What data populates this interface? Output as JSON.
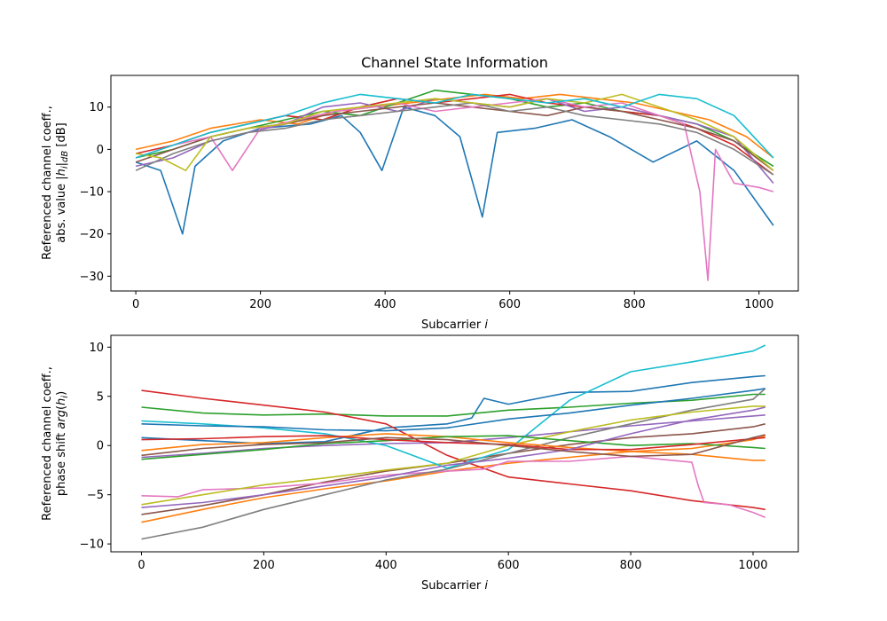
{
  "chart_data": [
    {
      "type": "line",
      "title": "Channel State Information",
      "xlabel": "Subcarrier i",
      "ylabel_line1": "Referenced channel coeff.,",
      "ylabel_line2": "abs. value |h_i|_dB [dB]",
      "xlim": [
        -40,
        1063
      ],
      "ylim": [
        -33.5,
        17.5
      ],
      "xticks": [
        0,
        200,
        400,
        600,
        800,
        1000
      ],
      "yticks": [
        -30,
        -20,
        -10,
        0,
        10
      ],
      "grid": false,
      "colors": [
        "#1f77b4",
        "#ff7f0e",
        "#2ca02c",
        "#d62728",
        "#9467bd",
        "#8c564b",
        "#e377c2",
        "#7f7f7f",
        "#bcbd22",
        "#17becf"
      ],
      "series": [
        {
          "x": [
            0,
            40,
            75,
            95,
            140,
            200,
            280,
            330,
            360,
            395,
            430,
            480,
            520,
            556,
            580,
            640,
            700,
            760,
            830,
            900,
            960,
            1023
          ],
          "y": [
            -3,
            -5,
            -20,
            -4,
            2,
            5,
            6,
            8,
            4,
            -5,
            10,
            8,
            3,
            -16,
            4,
            5,
            7,
            3,
            -3,
            2,
            -5,
            -18
          ]
        },
        {
          "x": [
            0,
            60,
            120,
            200,
            260,
            320,
            380,
            440,
            500,
            560,
            620,
            680,
            740,
            800,
            860,
            920,
            980,
            1023
          ],
          "y": [
            0,
            2,
            5,
            7,
            6,
            9,
            10,
            11,
            12,
            13,
            12,
            13,
            12,
            11,
            9,
            7,
            3,
            -2
          ]
        },
        {
          "x": [
            0,
            60,
            120,
            180,
            240,
            300,
            360,
            420,
            480,
            540,
            600,
            660,
            720,
            780,
            840,
            900,
            960,
            1023
          ],
          "y": [
            -2,
            0,
            3,
            5,
            7,
            9,
            8,
            11,
            14,
            13,
            12,
            10,
            11,
            9,
            8,
            6,
            2,
            -4
          ]
        },
        {
          "x": [
            0,
            60,
            120,
            180,
            240,
            300,
            360,
            420,
            480,
            540,
            600,
            660,
            720,
            780,
            840,
            900,
            960,
            1023
          ],
          "y": [
            -1,
            1,
            4,
            6,
            8,
            7,
            10,
            12,
            11,
            12,
            13,
            11,
            10,
            9,
            8,
            5,
            1,
            -6
          ]
        },
        {
          "x": [
            0,
            60,
            120,
            180,
            240,
            300,
            360,
            420,
            480,
            540,
            600,
            660,
            720,
            780,
            840,
            900,
            960,
            1023
          ],
          "y": [
            -4,
            -2,
            2,
            4,
            6,
            10,
            11,
            9,
            12,
            11,
            10,
            12,
            9,
            10,
            8,
            6,
            3,
            -8
          ]
        },
        {
          "x": [
            0,
            60,
            120,
            180,
            240,
            300,
            360,
            420,
            480,
            540,
            600,
            660,
            720,
            780,
            840,
            900,
            960,
            1023
          ],
          "y": [
            -3,
            0,
            3,
            5,
            6,
            8,
            9,
            10,
            11,
            10,
            9,
            8,
            10,
            9,
            7,
            5,
            2,
            -5
          ]
        },
        {
          "x": [
            0,
            60,
            120,
            155,
            200,
            260,
            320,
            380,
            420,
            480,
            540,
            600,
            660,
            720,
            780,
            840,
            880,
            905,
            918,
            930,
            960,
            1000,
            1023
          ],
          "y": [
            -2,
            1,
            3,
            -5,
            5,
            7,
            9,
            10,
            11,
            9,
            10,
            11,
            12,
            10,
            11,
            8,
            6,
            -10,
            -31,
            0,
            -8,
            -9,
            -10
          ]
        },
        {
          "x": [
            0,
            60,
            120,
            180,
            240,
            300,
            360,
            420,
            480,
            540,
            600,
            660,
            720,
            780,
            840,
            900,
            960,
            1023
          ],
          "y": [
            -5,
            -1,
            2,
            4,
            5,
            7,
            8,
            9,
            10,
            11,
            9,
            10,
            8,
            7,
            6,
            4,
            0,
            -6
          ]
        },
        {
          "x": [
            0,
            40,
            80,
            120,
            180,
            240,
            300,
            360,
            420,
            480,
            540,
            600,
            660,
            720,
            780,
            840,
            900,
            960,
            1023
          ],
          "y": [
            -1,
            -2,
            -5,
            3,
            5,
            6,
            9,
            10,
            11,
            12,
            11,
            10,
            12,
            11,
            13,
            10,
            7,
            3,
            -5
          ]
        },
        {
          "x": [
            0,
            60,
            120,
            180,
            240,
            300,
            360,
            420,
            480,
            540,
            600,
            660,
            720,
            780,
            840,
            900,
            960,
            1023
          ],
          "y": [
            -2,
            1,
            4,
            6,
            8,
            11,
            13,
            12,
            11,
            13,
            12,
            11,
            12,
            10,
            13,
            12,
            8,
            -2
          ]
        }
      ]
    },
    {
      "type": "line",
      "xlabel": "Subcarrier i",
      "ylabel_line1": "Referenced channel coeff.,",
      "ylabel_line2": "phase shift arg(h_i)",
      "xlim": [
        -50,
        1074
      ],
      "ylim": [
        -10.8,
        11.2
      ],
      "xticks": [
        0,
        200,
        400,
        600,
        800,
        1000
      ],
      "yticks": [
        -10,
        -5,
        0,
        5,
        10
      ],
      "grid": false,
      "colors": [
        "#1f77b4",
        "#ff7f0e",
        "#2ca02c",
        "#d62728",
        "#9467bd",
        "#8c564b",
        "#e377c2",
        "#7f7f7f",
        "#bcbd22",
        "#17becf"
      ],
      "series": [
        {
          "x": [
            0,
            100,
            200,
            300,
            400,
            500,
            540,
            560,
            600,
            700,
            800,
            900,
            1000,
            1020
          ],
          "y": [
            0.8,
            0.5,
            0.2,
            0.4,
            1.8,
            2.2,
            2.8,
            4.8,
            4.2,
            5.4,
            5.5,
            6.4,
            7.0,
            7.1
          ]
        },
        {
          "x": [
            0,
            100,
            200,
            300,
            400,
            500,
            600,
            700,
            800,
            900,
            1000,
            1020
          ],
          "y": [
            -7.8,
            -6.5,
            -5.3,
            -4.4,
            -3.6,
            -2.6,
            -1.8,
            -1.2,
            -0.6,
            -0.9,
            -1.5,
            -1.5
          ]
        },
        {
          "x": [
            0,
            100,
            200,
            300,
            400,
            500,
            600,
            700,
            800,
            900,
            1000,
            1020
          ],
          "y": [
            3.9,
            3.3,
            3.1,
            3.2,
            3.0,
            3.0,
            3.6,
            3.9,
            4.3,
            4.6,
            5.2,
            5.2
          ]
        },
        {
          "x": [
            0,
            100,
            200,
            300,
            400,
            500,
            600,
            700,
            800,
            900,
            1000,
            1020
          ],
          "y": [
            5.6,
            4.8,
            4.1,
            3.4,
            2.2,
            -1.0,
            -3.2,
            -3.9,
            -4.6,
            -5.6,
            -6.3,
            -6.5
          ]
        },
        {
          "x": [
            0,
            100,
            200,
            300,
            400,
            500,
            600,
            700,
            800,
            900,
            1000,
            1020
          ],
          "y": [
            -1.2,
            -0.8,
            -0.3,
            0.0,
            0.2,
            0.3,
            0.8,
            1.4,
            2.0,
            2.5,
            3.0,
            3.1
          ]
        },
        {
          "x": [
            0,
            100,
            200,
            300,
            400,
            500,
            600,
            700,
            800,
            900,
            1000,
            1020
          ],
          "y": [
            -7.0,
            -6.1,
            -5.0,
            -3.7,
            -2.6,
            -1.8,
            -0.8,
            0.1,
            0.8,
            1.2,
            1.9,
            2.2
          ]
        },
        {
          "x": [
            0,
            60,
            100,
            200,
            300,
            400,
            500,
            560,
            600,
            700,
            800,
            900,
            910,
            920,
            960,
            1000,
            1020
          ],
          "y": [
            -5.1,
            -5.2,
            -4.5,
            -4.3,
            -3.8,
            -3.0,
            -2.6,
            -2.4,
            -1.6,
            -1.6,
            -1.1,
            -1.7,
            -4.0,
            -5.8,
            -6.0,
            -6.8,
            -7.3
          ]
        },
        {
          "x": [
            0,
            100,
            200,
            300,
            400,
            500,
            600,
            700,
            800,
            900,
            1000,
            1020
          ],
          "y": [
            -9.5,
            -8.3,
            -6.5,
            -5.0,
            -3.5,
            -2.4,
            -0.8,
            0.8,
            2.2,
            3.6,
            4.7,
            5.8
          ]
        },
        {
          "x": [
            0,
            100,
            200,
            300,
            400,
            500,
            600,
            700,
            800,
            900,
            1000,
            1020
          ],
          "y": [
            -6.0,
            -5.0,
            -4.0,
            -3.3,
            -2.5,
            -1.8,
            0.0,
            1.4,
            2.6,
            3.4,
            4.0,
            4.0
          ]
        },
        {
          "x": [
            0,
            100,
            200,
            300,
            400,
            500,
            600,
            700,
            800,
            900,
            1000,
            1020
          ],
          "y": [
            2.5,
            2.2,
            1.8,
            1.2,
            0.0,
            -2.3,
            -0.4,
            4.6,
            7.5,
            8.5,
            9.6,
            10.2
          ]
        },
        {
          "x": [
            0,
            100,
            200,
            300,
            400,
            500,
            600,
            700,
            800,
            900,
            1000,
            1020
          ],
          "y": [
            2.2,
            2.0,
            1.9,
            1.6,
            1.5,
            1.8,
            2.7,
            3.3,
            4.1,
            4.8,
            5.6,
            5.8
          ]
        },
        {
          "x": [
            0,
            100,
            200,
            300,
            400,
            500,
            600,
            700,
            800,
            900,
            1000,
            1020
          ],
          "y": [
            -0.5,
            0.1,
            0.3,
            0.8,
            1.2,
            0.9,
            0.3,
            -0.2,
            -0.6,
            -0.3,
            0.6,
            1.0
          ]
        },
        {
          "x": [
            0,
            100,
            200,
            300,
            400,
            500,
            600,
            700,
            800,
            900,
            1000,
            1020
          ],
          "y": [
            -1.4,
            -0.9,
            -0.4,
            0.2,
            0.5,
            0.9,
            1.0,
            0.5,
            0.0,
            0.2,
            -0.2,
            -0.3
          ]
        },
        {
          "x": [
            0,
            100,
            200,
            300,
            400,
            500,
            600,
            700,
            800,
            900,
            1000,
            1020
          ],
          "y": [
            0.6,
            0.7,
            0.9,
            1.0,
            0.6,
            0.3,
            0.1,
            -0.4,
            -0.4,
            0.1,
            0.7,
            0.8
          ]
        },
        {
          "x": [
            0,
            100,
            200,
            300,
            400,
            500,
            600,
            700,
            800,
            900,
            1000,
            1020
          ],
          "y": [
            -6.3,
            -5.8,
            -5.0,
            -4.1,
            -3.2,
            -2.0,
            -1.3,
            -0.4,
            1.2,
            2.6,
            3.6,
            3.9
          ]
        },
        {
          "x": [
            0,
            100,
            200,
            300,
            400,
            500,
            600,
            700,
            800,
            900,
            1000,
            1020
          ],
          "y": [
            -1.0,
            -0.3,
            0.1,
            0.3,
            0.8,
            0.6,
            0.0,
            -0.6,
            -1.1,
            -0.9,
            0.8,
            1.1
          ]
        }
      ]
    }
  ]
}
